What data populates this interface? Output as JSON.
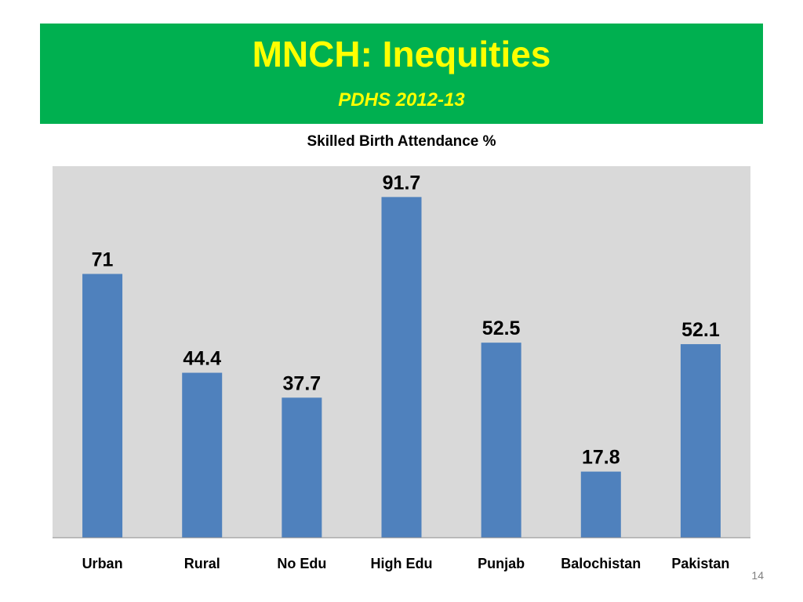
{
  "slide": {
    "title": "MNCH: Inequities",
    "subtitle": "PDHS 2012-13",
    "page_number": "14"
  },
  "colors": {
    "header_bg": "#00b050",
    "title_text": "#ffff00",
    "plot_bg": "#d9d9d9",
    "bar": "#4f81bd"
  },
  "chart_data": {
    "type": "bar",
    "title": "Skilled Birth Attendance  %",
    "categories": [
      "Urban",
      "Rural",
      "No Edu",
      "High Edu",
      "Punjab",
      "Balochistan",
      "Pakistan"
    ],
    "values": [
      71,
      44.4,
      37.7,
      91.7,
      52.5,
      17.8,
      52.1
    ],
    "data_labels": [
      "71",
      "44.4",
      "37.7",
      "91.7",
      "52.5",
      "17.8",
      "52.1"
    ],
    "ylim": [
      0,
      100
    ],
    "xlabel": "",
    "ylabel": "",
    "grid": false,
    "legend": "none"
  }
}
